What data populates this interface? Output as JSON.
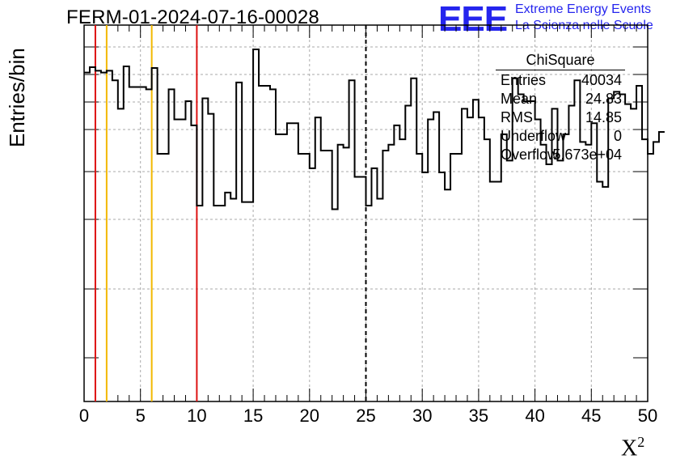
{
  "title": "FERM-01-2024-07-16-00028",
  "logo": {
    "mark": "EEE",
    "line1": "Extreme Energy Events",
    "line2": "La Scienza nelle Scuole"
  },
  "stats": {
    "title": "ChiSquare",
    "rows": [
      {
        "key": "Entries",
        "value": "40034"
      },
      {
        "key": "Mean",
        "value": "24.83"
      },
      {
        "key": "RMS",
        "value": "14.85"
      },
      {
        "key": "Underflow",
        "value": "0"
      },
      {
        "key": "Overflow",
        "value": "5.673e+04"
      }
    ]
  },
  "colors": {
    "histogram": "#000000",
    "red_line": "#dd1111",
    "yellow_line": "#f2b800",
    "grid": "#aaaaaa",
    "logo": "#2525ee"
  },
  "chart_data": {
    "type": "histogram",
    "title": "FERM-01-2024-07-16-00028",
    "xlabel": "X²",
    "ylabel": "Entries/bin",
    "xlim": [
      0,
      50
    ],
    "ylim": [
      0,
      1000
    ],
    "y_scale": "log",
    "x_ticks": [
      "0",
      "5",
      "10",
      "15",
      "20",
      "25",
      "30",
      "35",
      "40",
      "45",
      "50"
    ],
    "grid": true,
    "bin_width": 0.5,
    "values": [
      700,
      760,
      720,
      700,
      720,
      620,
      400,
      770,
      560,
      560,
      560,
      540,
      750,
      200,
      200,
      540,
      340,
      340,
      450,
      310,
      90,
      470,
      370,
      90,
      90,
      110,
      100,
      600,
      95,
      95,
      1000,
      570,
      570,
      540,
      270,
      270,
      320,
      320,
      200,
      200,
      160,
      350,
      210,
      210,
      85,
      230,
      220,
      620,
      140,
      140,
      90,
      160,
      100,
      210,
      230,
      310,
      250,
      420,
      640,
      200,
      150,
      340,
      380,
      150,
      115,
      200,
      200,
      400,
      350,
      460,
      350,
      250,
      130,
      130,
      270,
      180,
      640,
      500,
      450,
      450,
      340,
      230,
      170,
      400,
      180,
      270,
      420,
      620,
      240,
      230,
      320,
      130,
      120,
      470,
      520,
      500,
      430,
      400,
      570,
      250,
      200,
      240,
      280
    ],
    "vertical_lines": [
      {
        "x": 1,
        "color": "red",
        "style": "solid"
      },
      {
        "x": 2,
        "color": "yellow",
        "style": "solid"
      },
      {
        "x": 6,
        "color": "yellow",
        "style": "solid"
      },
      {
        "x": 10,
        "color": "red",
        "style": "solid"
      },
      {
        "x": 25,
        "color": "black",
        "style": "dashed"
      }
    ]
  }
}
